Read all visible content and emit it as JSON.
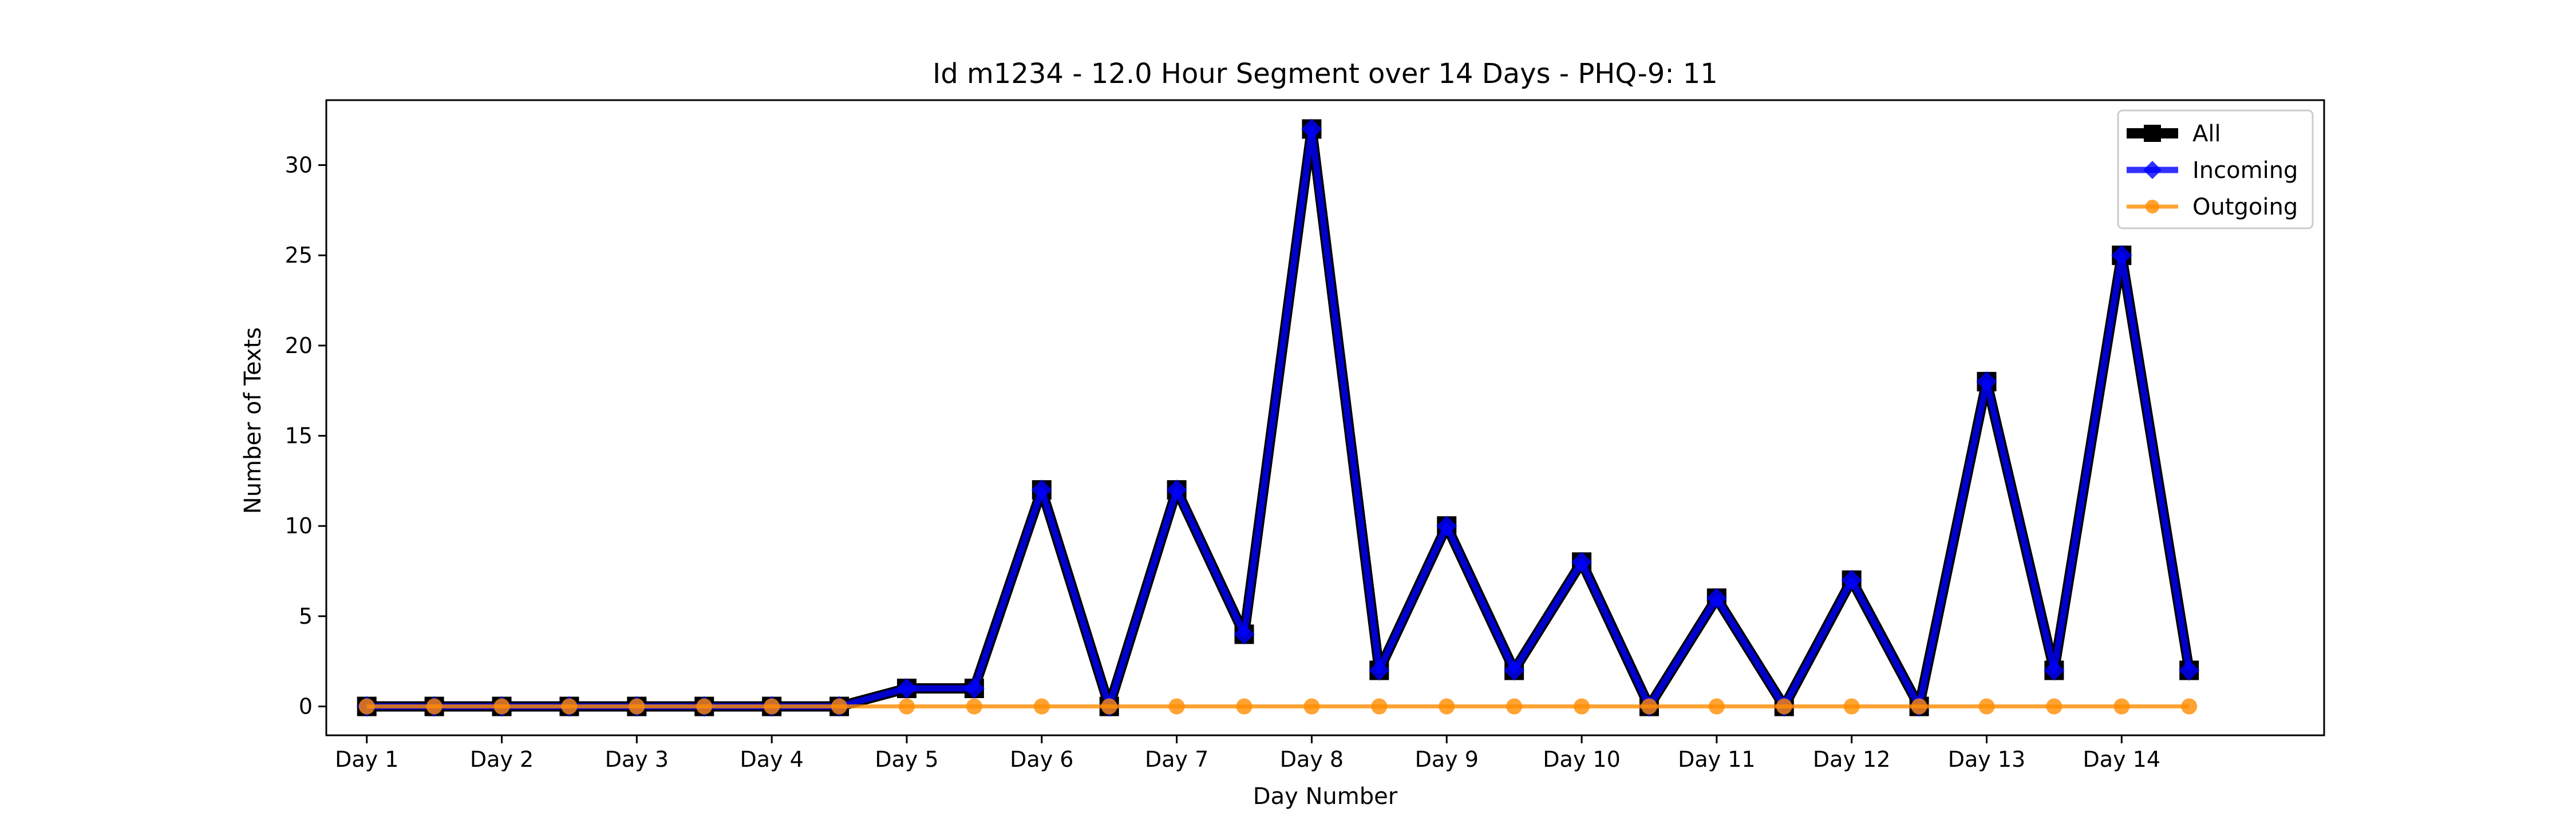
{
  "chart_data": {
    "type": "line",
    "title": "Id m1234 - 12.0 Hour Segment over 14 Days - PHQ-9: 11",
    "xlabel": "Day Number",
    "ylabel": "Number of Texts",
    "x_tick_labels": [
      "Day 1",
      "Day 2",
      "Day 3",
      "Day 4",
      "Day 5",
      "Day 6",
      "Day 7",
      "Day 8",
      "Day 9",
      "Day 10",
      "Day 11",
      "Day 12",
      "Day 13",
      "Day 14"
    ],
    "y_ticks": [
      0,
      5,
      10,
      15,
      20,
      25,
      30
    ],
    "xlim": [
      -0.3,
      14.5
    ],
    "ylim": [
      -1.6,
      33.6
    ],
    "x": [
      0,
      0.5,
      1,
      1.5,
      2,
      2.5,
      3,
      3.5,
      4,
      4.5,
      5,
      5.5,
      6,
      6.5,
      7,
      7.5,
      8,
      8.5,
      9,
      9.5,
      10,
      10.5,
      11,
      11.5,
      12,
      12.5,
      13,
      13.5
    ],
    "legend_position": "top-right",
    "grid": false,
    "series": [
      {
        "name": "All",
        "color": "#000000",
        "marker": "square",
        "values": [
          0,
          0,
          0,
          0,
          0,
          0,
          0,
          0,
          1,
          1,
          12,
          0,
          12,
          4,
          32,
          2,
          10,
          2,
          8,
          0,
          6,
          0,
          7,
          0,
          18,
          2,
          25,
          2
        ]
      },
      {
        "name": "Incoming",
        "color": "#0000ff",
        "marker": "diamond",
        "values": [
          0,
          0,
          0,
          0,
          0,
          0,
          0,
          0,
          1,
          1,
          12,
          0,
          12,
          4,
          32,
          2,
          10,
          2,
          8,
          0,
          6,
          0,
          7,
          0,
          18,
          2,
          25,
          2
        ]
      },
      {
        "name": "Outgoing",
        "color": "#ff8c00",
        "marker": "circle",
        "values": [
          0,
          0,
          0,
          0,
          0,
          0,
          0,
          0,
          0,
          0,
          0,
          0,
          0,
          0,
          0,
          0,
          0,
          0,
          0,
          0,
          0,
          0,
          0,
          0,
          0,
          0,
          0,
          0
        ]
      }
    ]
  }
}
